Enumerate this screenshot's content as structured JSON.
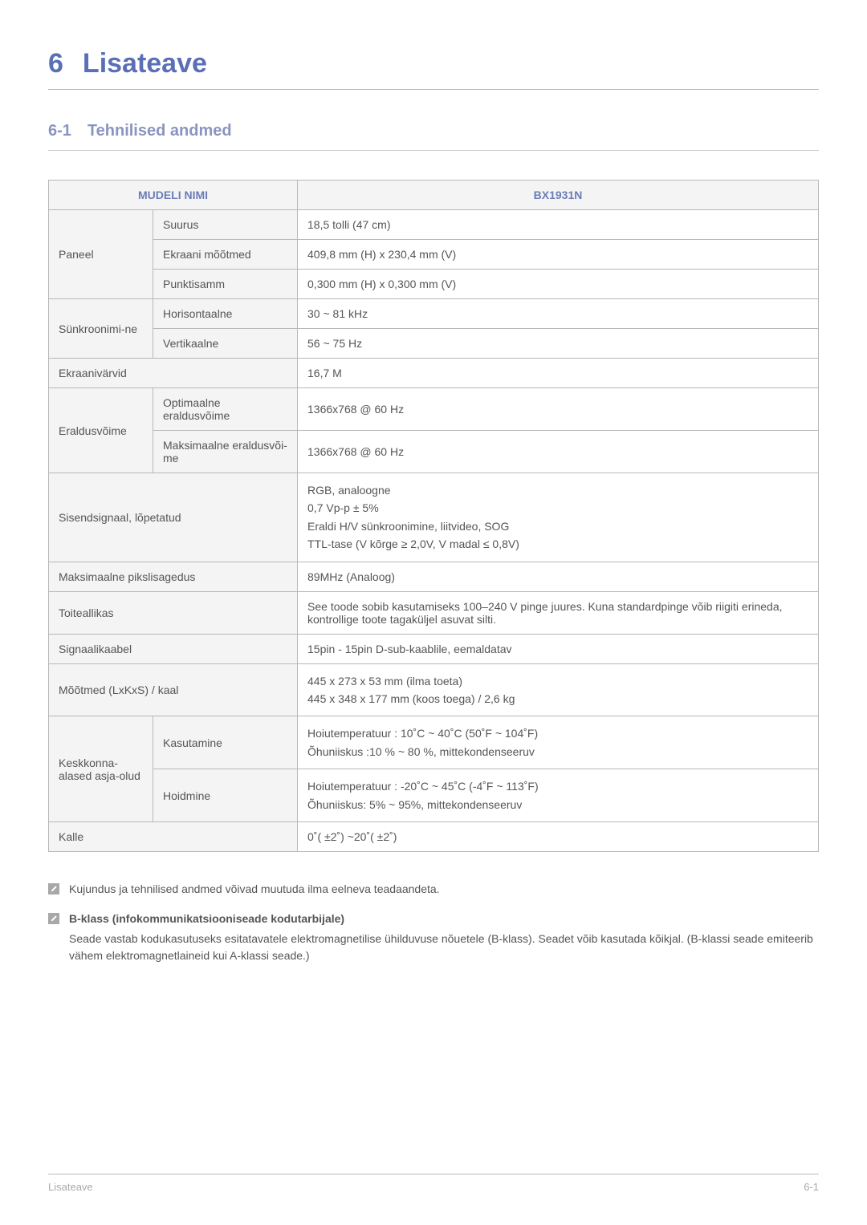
{
  "chapter": {
    "num": "6",
    "title": "Lisateave"
  },
  "section": {
    "num": "6-1",
    "title": "Tehnilised andmed"
  },
  "table": {
    "headers": {
      "name": "MUDELI NIMI",
      "model": "BX1931N"
    },
    "rows": [
      {
        "c1": "Paneel",
        "c2": "Suurus",
        "v": "18,5 tolli (47 cm)",
        "rowspan1": 3
      },
      {
        "c2": "Ekraani mõõtmed",
        "v": "409,8 mm (H) x 230,4 mm (V)"
      },
      {
        "c2": "Punktisamm",
        "v": "0,300 mm (H) x 0,300 mm (V)"
      },
      {
        "c1": "Sünkroonimi-ne",
        "c2": "Horisontaalne",
        "v": "30 ~ 81 kHz",
        "rowspan1": 2
      },
      {
        "c2": "Vertikaalne",
        "v": "56 ~ 75 Hz"
      },
      {
        "c1span": "Ekraanivärvid",
        "v": "16,7 M"
      },
      {
        "c1": "Eraldusvõime",
        "c2": "Optimaalne eraldusvõime",
        "v": "1366x768 @ 60 Hz",
        "rowspan1": 2
      },
      {
        "c2": "Maksimaalne eraldusvõi-me",
        "v": "1366x768 @ 60 Hz"
      },
      {
        "c1span": "Sisendsignaal, lõpetatud",
        "v": "RGB, analoogne\n0,7 Vp-p ± 5%\nEraldi H/V sünkroonimine, liitvideo, SOG\nTTL-tase (V kõrge ≥ 2,0V, V madal ≤ 0,8V)"
      },
      {
        "c1span": "Maksimaalne pikslisagedus",
        "v": "89MHz (Analoog)"
      },
      {
        "c1span": "Toiteallikas",
        "v": "See toode sobib kasutamiseks 100–240 V pinge juures. Kuna standardpinge võib riigiti erineda, kontrollige toote tagaküljel asuvat silti."
      },
      {
        "c1span": "Signaalikaabel",
        "v": "15pin - 15pin D-sub-kaablile, eemaldatav"
      },
      {
        "c1span": "Mõõtmed (LxKxS) / kaal",
        "v": "445 x 273 x 53 mm (ilma toeta)\n445 x 348 x 177 mm (koos toega) / 2,6 kg"
      },
      {
        "c1": "Keskkonna-alased asja-olud",
        "c2": "Kasutamine",
        "v": "Hoiutemperatuur : 10˚C ~ 40˚C (50˚F ~ 104˚F)\nÕhuniiskus :10 % ~ 80 %, mittekondenseeruv",
        "rowspan1": 2
      },
      {
        "c2": "Hoidmine",
        "v": "Hoiutemperatuur : -20˚C ~ 45˚C (-4˚F ~ 113˚F)\nÕhuniiskus: 5% ~ 95%, mittekondenseeruv"
      },
      {
        "c1span": "Kalle",
        "v": "0˚( ±2˚) ~20˚( ±2˚)"
      }
    ]
  },
  "notes": {
    "n1": "Kujundus ja tehnilised andmed võivad muutuda ilma eelneva teadaandeta.",
    "n2title": "B-klass (infokommunikatsiooniseade kodutarbijale)",
    "n2body": "Seade vastab kodukasutuseks esitatavatele elektromagnetilise ühilduvuse nõuetele (B-klass). Seadet võib kasutada kõikjal. (B-klassi seade emiteerib vähem elektromagnetlaineid kui A-klassi seade.)"
  },
  "footer": {
    "left": "Lisateave",
    "right": "6-1"
  }
}
